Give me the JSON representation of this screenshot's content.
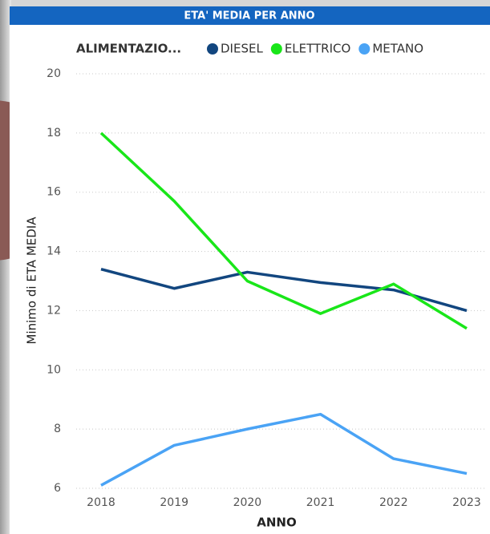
{
  "chart_data": {
    "type": "line",
    "title": "ETA' MEDIA PER ANNO",
    "legend_title": "ALIMENTAZIO...",
    "x_label": "ANNO",
    "y_label": "Minimo di ETA MEDIA",
    "categories": [
      "2018",
      "2019",
      "2020",
      "2021",
      "2022",
      "2023"
    ],
    "series": [
      {
        "name": "DIESEL",
        "color": "#12467f",
        "values": [
          13.4,
          12.75,
          13.3,
          12.95,
          12.7,
          12.0
        ]
      },
      {
        "name": "ELETTRICO",
        "color": "#19e619",
        "values": [
          18.0,
          15.7,
          13.0,
          11.9,
          12.9,
          11.4
        ]
      },
      {
        "name": "METANO",
        "color": "#4aa3f5",
        "values": [
          6.1,
          7.45,
          8.0,
          8.5,
          7.0,
          6.5
        ]
      }
    ],
    "ylim": [
      6,
      20
    ],
    "yticks": [
      6,
      8,
      10,
      12,
      14,
      16,
      18,
      20
    ],
    "grid": true
  }
}
